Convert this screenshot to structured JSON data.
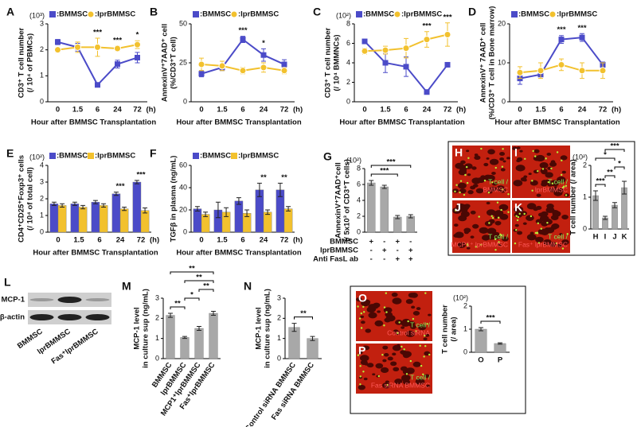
{
  "chart_data": [
    {
      "type": "line",
      "title": "A",
      "unit": "(10³)",
      "ylabel": [
        "CD3⁺ T cell number",
        "(/ 10⁴ of PBMCs)"
      ],
      "xlabel": "Hour after BMMSC Transplantation",
      "xunit": "(h)",
      "categories": [
        "0",
        "1.5",
        "6",
        "24",
        "72"
      ],
      "ylim": [
        0,
        3
      ],
      "yticks": [
        0,
        1,
        2,
        3
      ],
      "series": [
        {
          "name": ":BMMSC",
          "color": "#4b4bc8",
          "marker": "square",
          "values": [
            2.3,
            2.1,
            0.65,
            1.45,
            1.7
          ],
          "errors": [
            0.1,
            0.15,
            0.05,
            0.15,
            0.2
          ]
        },
        {
          "name": ":lprBMMSC",
          "color": "#f2c12e",
          "marker": "circle",
          "values": [
            2.0,
            2.1,
            2.1,
            2.05,
            2.2
          ],
          "errors": [
            0.1,
            0.2,
            0.35,
            0.1,
            0.15
          ]
        }
      ],
      "sig": [
        {
          "text": "***",
          "category": 2
        },
        {
          "text": "***",
          "category": 3
        },
        {
          "text": "*",
          "category": 4
        }
      ]
    },
    {
      "type": "line",
      "title": "B",
      "ylabel": [
        "AnnexinV⁺7AAD⁺ cell",
        "(%/CD3⁺T cell)"
      ],
      "xlabel": "Hour after BMMSC Transplantation",
      "xunit": "(h)",
      "categories": [
        "0",
        "1.5",
        "6",
        "24",
        "72"
      ],
      "ylim": [
        0,
        50
      ],
      "yticks": [
        0,
        25,
        50
      ],
      "series": [
        {
          "name": ":BMMSC",
          "color": "#4b4bc8",
          "marker": "square",
          "values": [
            18,
            22,
            40,
            30,
            24
          ],
          "errors": [
            2,
            2,
            2,
            4,
            3
          ]
        },
        {
          "name": ":lprBMMSC",
          "color": "#f2c12e",
          "marker": "circle",
          "values": [
            24,
            23,
            20,
            22,
            20
          ],
          "errors": [
            4,
            3,
            2,
            3,
            2
          ]
        }
      ],
      "sig": [
        {
          "text": "***",
          "category": 2
        },
        {
          "text": "*",
          "category": 3
        }
      ]
    },
    {
      "type": "line",
      "title": "C",
      "unit": "(10²)",
      "ylabel": [
        "CD3⁺ T cell number",
        "(/ 10⁴ BMMNCs)"
      ],
      "xlabel": "Hour after BMMSC Transplantation",
      "xunit": "(h)",
      "categories": [
        "0",
        "1.5",
        "6",
        "24",
        "72"
      ],
      "ylim": [
        0,
        8
      ],
      "yticks": [
        0,
        2,
        4,
        6,
        8
      ],
      "series": [
        {
          "name": ":BMMSC",
          "color": "#4b4bc8",
          "marker": "square",
          "values": [
            6.2,
            4.0,
            3.6,
            1.0,
            3.8
          ],
          "errors": [
            0.2,
            1,
            1,
            0.1,
            0.1
          ]
        },
        {
          "name": ":lprBMMSC",
          "color": "#f2c12e",
          "marker": "circle",
          "values": [
            5.2,
            5.3,
            5.5,
            6.4,
            6.9
          ],
          "errors": [
            0.3,
            0.4,
            1,
            0.8,
            1.2
          ]
        }
      ],
      "sig": [
        {
          "text": "***",
          "category": 3
        },
        {
          "text": "***",
          "category": 4
        }
      ]
    },
    {
      "type": "line",
      "title": "D",
      "ylabel": [
        "AnnexinV⁺ 7AAD⁺ cell",
        "(%/CD3⁺ T cell in Bone marrow)"
      ],
      "xlabel": "Hour after BMMSC Transplantation",
      "xunit": "(h)",
      "categories": [
        "0",
        "1.5",
        "6",
        "24",
        "72"
      ],
      "ylim": [
        0,
        20
      ],
      "yticks": [
        0,
        10,
        20
      ],
      "series": [
        {
          "name": ":BMMSC",
          "color": "#4b4bc8",
          "marker": "square",
          "values": [
            6,
            7,
            16,
            16.5,
            9.5
          ],
          "errors": [
            1.5,
            0.5,
            1,
            1,
            0.7
          ]
        },
        {
          "name": ":lprBMMSC",
          "color": "#f2c12e",
          "marker": "circle",
          "values": [
            7.5,
            8,
            9.5,
            8,
            8
          ],
          "errors": [
            1.5,
            2,
            1.5,
            2,
            2
          ]
        }
      ],
      "sig": [
        {
          "text": "***",
          "category": 2
        },
        {
          "text": "***",
          "category": 3
        }
      ]
    },
    {
      "type": "bar",
      "title": "E",
      "unit": "(10²)",
      "ylabel": [
        "CD4⁺CD25⁺Foxp3⁺ cells",
        "(/ 10⁴ of total cell)"
      ],
      "xlabel": "Hour after BMMSC Transplantation",
      "xunit": "(h)",
      "categories": [
        "0",
        "1.5",
        "6",
        "24",
        "72"
      ],
      "ylim": [
        0,
        4
      ],
      "yticks": [
        0,
        1,
        2,
        3,
        4
      ],
      "series": [
        {
          "name": ":BMMSC",
          "color": "#4b4bc8",
          "values": [
            1.7,
            1.7,
            1.8,
            2.3,
            3.0
          ],
          "errors": [
            0.1,
            0.1,
            0.1,
            0.1,
            0.1
          ]
        },
        {
          "name": ":lprBMMSC",
          "color": "#f2c12e",
          "values": [
            1.6,
            1.5,
            1.6,
            1.4,
            1.3
          ],
          "errors": [
            0.1,
            0.1,
            0.1,
            0.1,
            0.15
          ]
        }
      ],
      "sig": [
        {
          "text": "***",
          "category": 3
        },
        {
          "text": "***",
          "category": 4
        }
      ]
    },
    {
      "type": "bar",
      "title": "F",
      "ylabel": [
        "TGFβ in plasma (ng/mL)"
      ],
      "xlabel": "Hour after BMMSC Transplantation",
      "xunit": "(h)",
      "categories": [
        "0",
        "1.5",
        "6",
        "24",
        "72"
      ],
      "ylim": [
        0,
        60
      ],
      "yticks": [
        0,
        20,
        40,
        60
      ],
      "series": [
        {
          "name": ":BMMSC",
          "color": "#4b4bc8",
          "values": [
            21,
            20,
            28,
            38,
            38
          ],
          "errors": [
            2,
            7,
            3,
            6,
            6
          ]
        },
        {
          "name": ":lprBMMSC",
          "color": "#f2c12e",
          "values": [
            16,
            18,
            17,
            18,
            21
          ],
          "errors": [
            2,
            4,
            3,
            2,
            2
          ]
        }
      ],
      "sig": [
        {
          "text": "**",
          "category": 3
        },
        {
          "text": "**",
          "category": 4
        }
      ]
    },
    {
      "type": "bar",
      "title": "G",
      "unit": "(10²)",
      "ylabel": [
        "AnnexinV⁺7AAD⁺cell",
        "(/ 5x10³ of CD3⁺T cells)"
      ],
      "categories": [
        null,
        null,
        null,
        null
      ],
      "ylim": [
        0,
        8
      ],
      "yticks": [
        0,
        2,
        4,
        6,
        8
      ],
      "series": [
        {
          "color": "#a8a8a8",
          "values": [
            6.2,
            5.7,
            1.9,
            2.0
          ],
          "errors": [
            0.3,
            0.2,
            0.2,
            0.2
          ]
        }
      ],
      "brackets": [
        {
          "text": "***",
          "from": 0,
          "to": 2
        },
        {
          "text": "***",
          "from": 0,
          "to": 3
        }
      ],
      "table": [
        {
          "label": "BMMSC",
          "marks": [
            "+",
            "-",
            "+",
            "-"
          ]
        },
        {
          "label": "lprBMMSC",
          "marks": [
            "-",
            "+",
            "-",
            "+"
          ]
        },
        {
          "label": "Anti FasL ab",
          "marks": [
            "-",
            "-",
            "+",
            "+"
          ]
        }
      ]
    },
    {
      "type": "bar",
      "unit": "(10²)",
      "ylabel": [
        "T cell number (/ area)"
      ],
      "categories": [
        "H",
        "I",
        "J",
        "K"
      ],
      "ylim": [
        0,
        2
      ],
      "yticks": [
        0,
        1,
        2
      ],
      "series": [
        {
          "color": "#a8a8a8",
          "values": [
            1.05,
            0.35,
            0.75,
            1.3
          ],
          "errors": [
            0.15,
            0.05,
            0.08,
            0.2
          ]
        }
      ],
      "brackets": [
        {
          "text": "***",
          "from": 0,
          "to": 1
        },
        {
          "text": "**",
          "from": 1,
          "to": 2
        },
        {
          "text": "*",
          "from": 2,
          "to": 3
        },
        {
          "text": "*",
          "from": 0,
          "to": 2
        },
        {
          "text": "***",
          "from": 1,
          "to": 3
        }
      ]
    },
    {
      "type": "bar",
      "title": "M",
      "ylabel": [
        "MCP-1 level",
        "in culture sup (ng/mL)"
      ],
      "rotate_labels": true,
      "categories": [
        "BMMSC",
        "lprBMMSC",
        "MCP1⁺lprBMMSC",
        "Fas⁺lprBMMSC"
      ],
      "ylim": [
        0,
        3
      ],
      "yticks": [
        0,
        1,
        2,
        3
      ],
      "series": [
        {
          "color": "#a8a8a8",
          "values": [
            2.15,
            1.05,
            1.5,
            2.25
          ],
          "errors": [
            0.1,
            0.05,
            0.1,
            0.1
          ]
        }
      ],
      "brackets": [
        {
          "text": "**",
          "from": 0,
          "to": 1
        },
        {
          "text": "*",
          "from": 1,
          "to": 2
        },
        {
          "text": "**",
          "from": 2,
          "to": 3
        },
        {
          "text": "**",
          "from": 1,
          "to": 3
        },
        {
          "text": "**",
          "from": 0,
          "to": 3
        }
      ]
    },
    {
      "type": "bar",
      "title": "N",
      "ylabel": [
        "MCP-1 level",
        "in culture sup (ng/mL)"
      ],
      "rotate_labels": true,
      "categories": [
        "Control siRNA BMMSC",
        "Fas siRNA BMMSC"
      ],
      "ylim": [
        0,
        3
      ],
      "yticks": [
        0,
        1,
        2,
        3
      ],
      "series": [
        {
          "color": "#a8a8a8",
          "values": [
            1.55,
            1.0
          ],
          "errors": [
            0.2,
            0.1
          ]
        }
      ],
      "brackets": [
        {
          "text": "**",
          "from": 0,
          "to": 1
        }
      ]
    },
    {
      "type": "bar",
      "unit": "(10²)",
      "ylabel": [
        "T cell number",
        "(/ area)"
      ],
      "categories": [
        "O",
        "P"
      ],
      "ylim": [
        0,
        2
      ],
      "yticks": [
        0,
        1,
        2
      ],
      "series": [
        {
          "color": "#a8a8a8",
          "values": [
            1.0,
            0.38
          ],
          "errors": [
            0.07,
            0.03
          ]
        }
      ],
      "brackets": [
        {
          "text": "***",
          "from": 0,
          "to": 1
        }
      ]
    }
  ],
  "images": [
    {
      "title": "H",
      "labels": [
        "T cell /",
        "BMMSC"
      ]
    },
    {
      "title": "I",
      "labels": [
        "T cell /",
        "lprBMMSC"
      ]
    },
    {
      "title": "J",
      "labels": [
        "T cell /",
        "MCP1⁺ lprBMMSC"
      ]
    },
    {
      "title": "K",
      "labels": [
        "T cell /",
        "Fas⁺ lprBMMSC"
      ]
    },
    {
      "title": "O",
      "labels": [
        "T cell /",
        "Control siRNA"
      ]
    },
    {
      "title": "P",
      "labels": [
        "T cell /",
        "Fas siRNA BMMSC"
      ]
    }
  ],
  "blot": {
    "title": "L",
    "bands": [
      "MCP-1",
      "β-actin"
    ],
    "lanes": [
      "BMMSC",
      "lprBMMSC",
      "Fas⁺lprBMMSC"
    ]
  }
}
